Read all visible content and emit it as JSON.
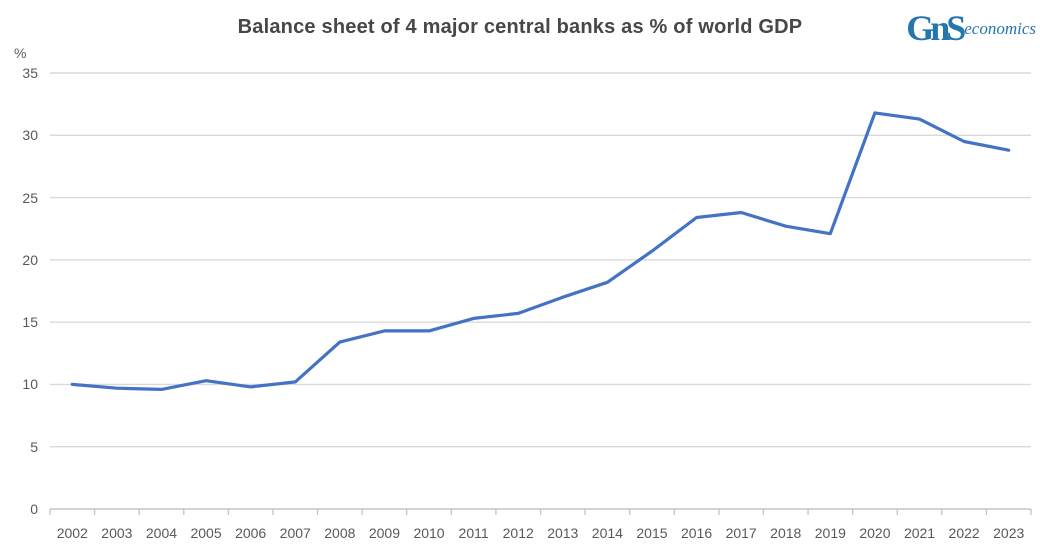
{
  "logo": {
    "mark": "GnS",
    "word": "economics",
    "color": "#2676AC"
  },
  "chart_data": {
    "type": "line",
    "title": "Balance sheet of 4 major central banks as % of world GDP",
    "ylabel": "%",
    "xlabel": "",
    "x": [
      2002,
      2003,
      2004,
      2005,
      2006,
      2007,
      2008,
      2009,
      2010,
      2011,
      2012,
      2013,
      2014,
      2015,
      2016,
      2017,
      2018,
      2019,
      2020,
      2021,
      2022,
      2023
    ],
    "values": [
      10.0,
      9.7,
      9.6,
      10.3,
      9.8,
      10.2,
      13.4,
      14.3,
      14.3,
      15.3,
      15.7,
      17.0,
      18.2,
      20.7,
      23.4,
      23.8,
      22.7,
      22.1,
      31.8,
      31.3,
      29.5,
      28.8
    ],
    "ylim": [
      0,
      35
    ],
    "yticks": [
      0,
      5,
      10,
      15,
      20,
      25,
      30,
      35
    ],
    "grid": "horizontal",
    "legend": "none",
    "line_color": "#4472C4",
    "gridline_color": "#D9D9D9",
    "axis_line_color": "#C6C6C6",
    "axis_text_color": "#595959",
    "title_color": "#474747"
  }
}
